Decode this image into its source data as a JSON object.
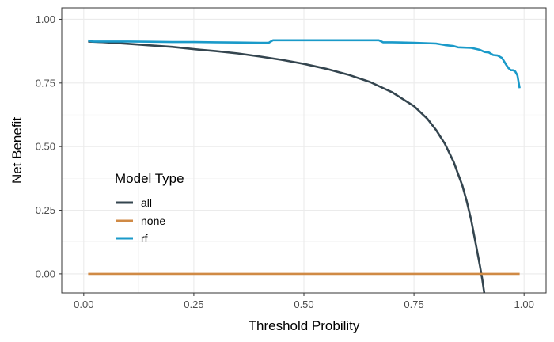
{
  "chart_data": {
    "type": "line",
    "title": "",
    "xlabel": "Threshold Probility",
    "ylabel": "Net Benefit",
    "xlim": [
      -0.05,
      1.05
    ],
    "ylim": [
      -0.075,
      1.045
    ],
    "x_ticks": [
      0.0,
      0.25,
      0.5,
      0.75,
      1.0
    ],
    "x_tick_labels": [
      "0.00",
      "0.25",
      "0.50",
      "0.75",
      "1.00"
    ],
    "y_ticks": [
      0.0,
      0.25,
      0.5,
      0.75,
      1.0
    ],
    "y_tick_labels": [
      "0.00",
      "0.25",
      "0.50",
      "0.75",
      "1.00"
    ],
    "grid": true,
    "legend": {
      "title": "Model Type",
      "position": "inside-left",
      "entries": [
        "all",
        "none",
        "rf"
      ]
    },
    "series": [
      {
        "name": "all",
        "color": "#34454f",
        "x": [
          0.01,
          0.05,
          0.1,
          0.15,
          0.2,
          0.25,
          0.3,
          0.35,
          0.4,
          0.45,
          0.5,
          0.55,
          0.6,
          0.65,
          0.7,
          0.75,
          0.78,
          0.8,
          0.82,
          0.84,
          0.86,
          0.87,
          0.88,
          0.89,
          0.9,
          0.905,
          0.91
        ],
        "y": [
          0.913,
          0.91,
          0.904,
          0.898,
          0.892,
          0.883,
          0.875,
          0.866,
          0.854,
          0.841,
          0.825,
          0.806,
          0.783,
          0.754,
          0.714,
          0.659,
          0.61,
          0.566,
          0.512,
          0.44,
          0.346,
          0.283,
          0.211,
          0.12,
          0.03,
          -0.02,
          -0.08
        ]
      },
      {
        "name": "none",
        "color": "#d08a45",
        "x": [
          0.01,
          0.99
        ],
        "y": [
          0.0,
          0.0
        ]
      },
      {
        "name": "rf",
        "color": "#1a9ac9",
        "x": [
          0.01,
          0.02,
          0.05,
          0.1,
          0.15,
          0.2,
          0.25,
          0.3,
          0.35,
          0.4,
          0.42,
          0.43,
          0.5,
          0.55,
          0.6,
          0.65,
          0.67,
          0.68,
          0.7,
          0.75,
          0.8,
          0.82,
          0.84,
          0.85,
          0.88,
          0.9,
          0.91,
          0.92,
          0.93,
          0.94,
          0.95,
          0.96,
          0.965,
          0.97,
          0.975,
          0.98,
          0.985,
          0.99
        ],
        "y": [
          0.917,
          0.913,
          0.913,
          0.913,
          0.912,
          0.911,
          0.911,
          0.91,
          0.909,
          0.908,
          0.908,
          0.918,
          0.918,
          0.918,
          0.918,
          0.918,
          0.918,
          0.91,
          0.91,
          0.908,
          0.905,
          0.899,
          0.895,
          0.89,
          0.888,
          0.88,
          0.872,
          0.87,
          0.86,
          0.858,
          0.848,
          0.82,
          0.808,
          0.8,
          0.8,
          0.795,
          0.78,
          0.73
        ]
      }
    ]
  }
}
